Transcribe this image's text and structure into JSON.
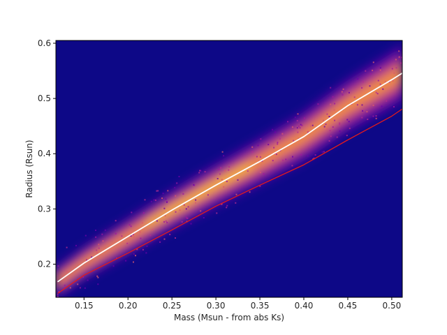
{
  "chart_data": {
    "type": "heatmap",
    "title": "",
    "xlabel": "Mass (Msun - from abs Ks)",
    "ylabel": "Radius (Rsun)",
    "xlim": [
      0.118,
      0.512
    ],
    "ylim": [
      0.14,
      0.605
    ],
    "x_ticks": [
      0.15,
      0.2,
      0.25,
      0.3,
      0.35,
      0.4,
      0.45,
      0.5
    ],
    "x_tick_labels": [
      "0.15",
      "0.20",
      "0.25",
      "0.30",
      "0.35",
      "0.40",
      "0.45",
      "0.50"
    ],
    "y_ticks": [
      0.2,
      0.3,
      0.4,
      0.5,
      0.6
    ],
    "y_tick_labels": [
      "0.2",
      "0.3",
      "0.4",
      "0.5",
      "0.6"
    ],
    "grid": false,
    "background_color": "#0d0887",
    "colormap": "plasma",
    "series": [
      {
        "color": "#ffffff",
        "x": [
          0.12,
          0.15,
          0.2,
          0.25,
          0.3,
          0.35,
          0.4,
          0.45,
          0.5,
          0.512
        ],
        "y": [
          0.168,
          0.202,
          0.25,
          0.298,
          0.343,
          0.386,
          0.431,
          0.487,
          0.534,
          0.546
        ]
      },
      {
        "color": "#e31a1c",
        "x": [
          0.12,
          0.15,
          0.2,
          0.25,
          0.3,
          0.35,
          0.4,
          0.45,
          0.5,
          0.512
        ],
        "y": [
          0.147,
          0.18,
          0.22,
          0.262,
          0.305,
          0.343,
          0.38,
          0.425,
          0.468,
          0.481
        ]
      }
    ]
  }
}
